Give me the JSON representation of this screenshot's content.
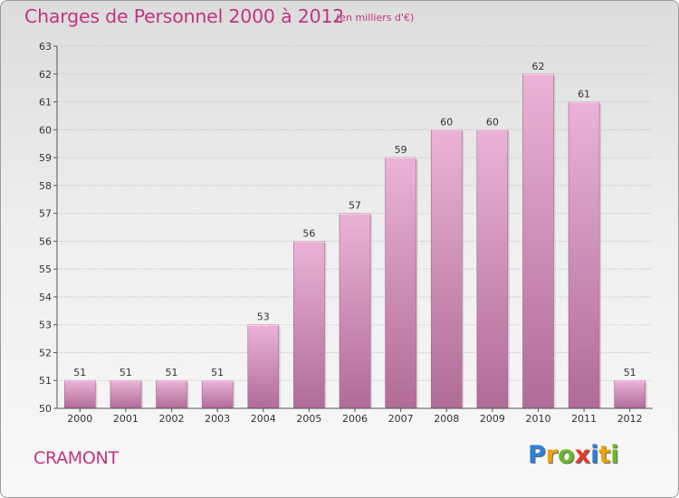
{
  "title": "Charges de Personnel 2000 à 2012",
  "subtitle": "(en milliers d'€)",
  "place": "CRAMONT",
  "logo": {
    "letters": [
      {
        "ch": "P",
        "color": "#2f7fd6"
      },
      {
        "ch": "r",
        "color": "#f0a10c"
      },
      {
        "ch": "o",
        "color": "#6cb82a"
      },
      {
        "ch": "x",
        "color": "#e33b2b"
      },
      {
        "ch": "i",
        "color": "#2f7fd6"
      },
      {
        "ch": "t",
        "color": "#f0a10c"
      },
      {
        "ch": "i",
        "color": "#6cb82a"
      }
    ]
  },
  "colors": {
    "bar_light": "#eab3d6",
    "bar_dark": "#b06b97",
    "text": "#c0357f"
  },
  "chart_data": {
    "type": "bar",
    "categories": [
      "2000",
      "2001",
      "2002",
      "2003",
      "2004",
      "2005",
      "2006",
      "2007",
      "2008",
      "2009",
      "2010",
      "2011",
      "2012"
    ],
    "values": [
      51,
      51,
      51,
      51,
      53,
      56,
      57,
      59,
      60,
      60,
      62,
      61,
      51
    ],
    "ylim": [
      50,
      63
    ],
    "yticks": [
      50,
      51,
      52,
      53,
      54,
      55,
      56,
      57,
      58,
      59,
      60,
      61,
      62,
      63
    ],
    "grid": "horizontal",
    "data_labels": true
  }
}
